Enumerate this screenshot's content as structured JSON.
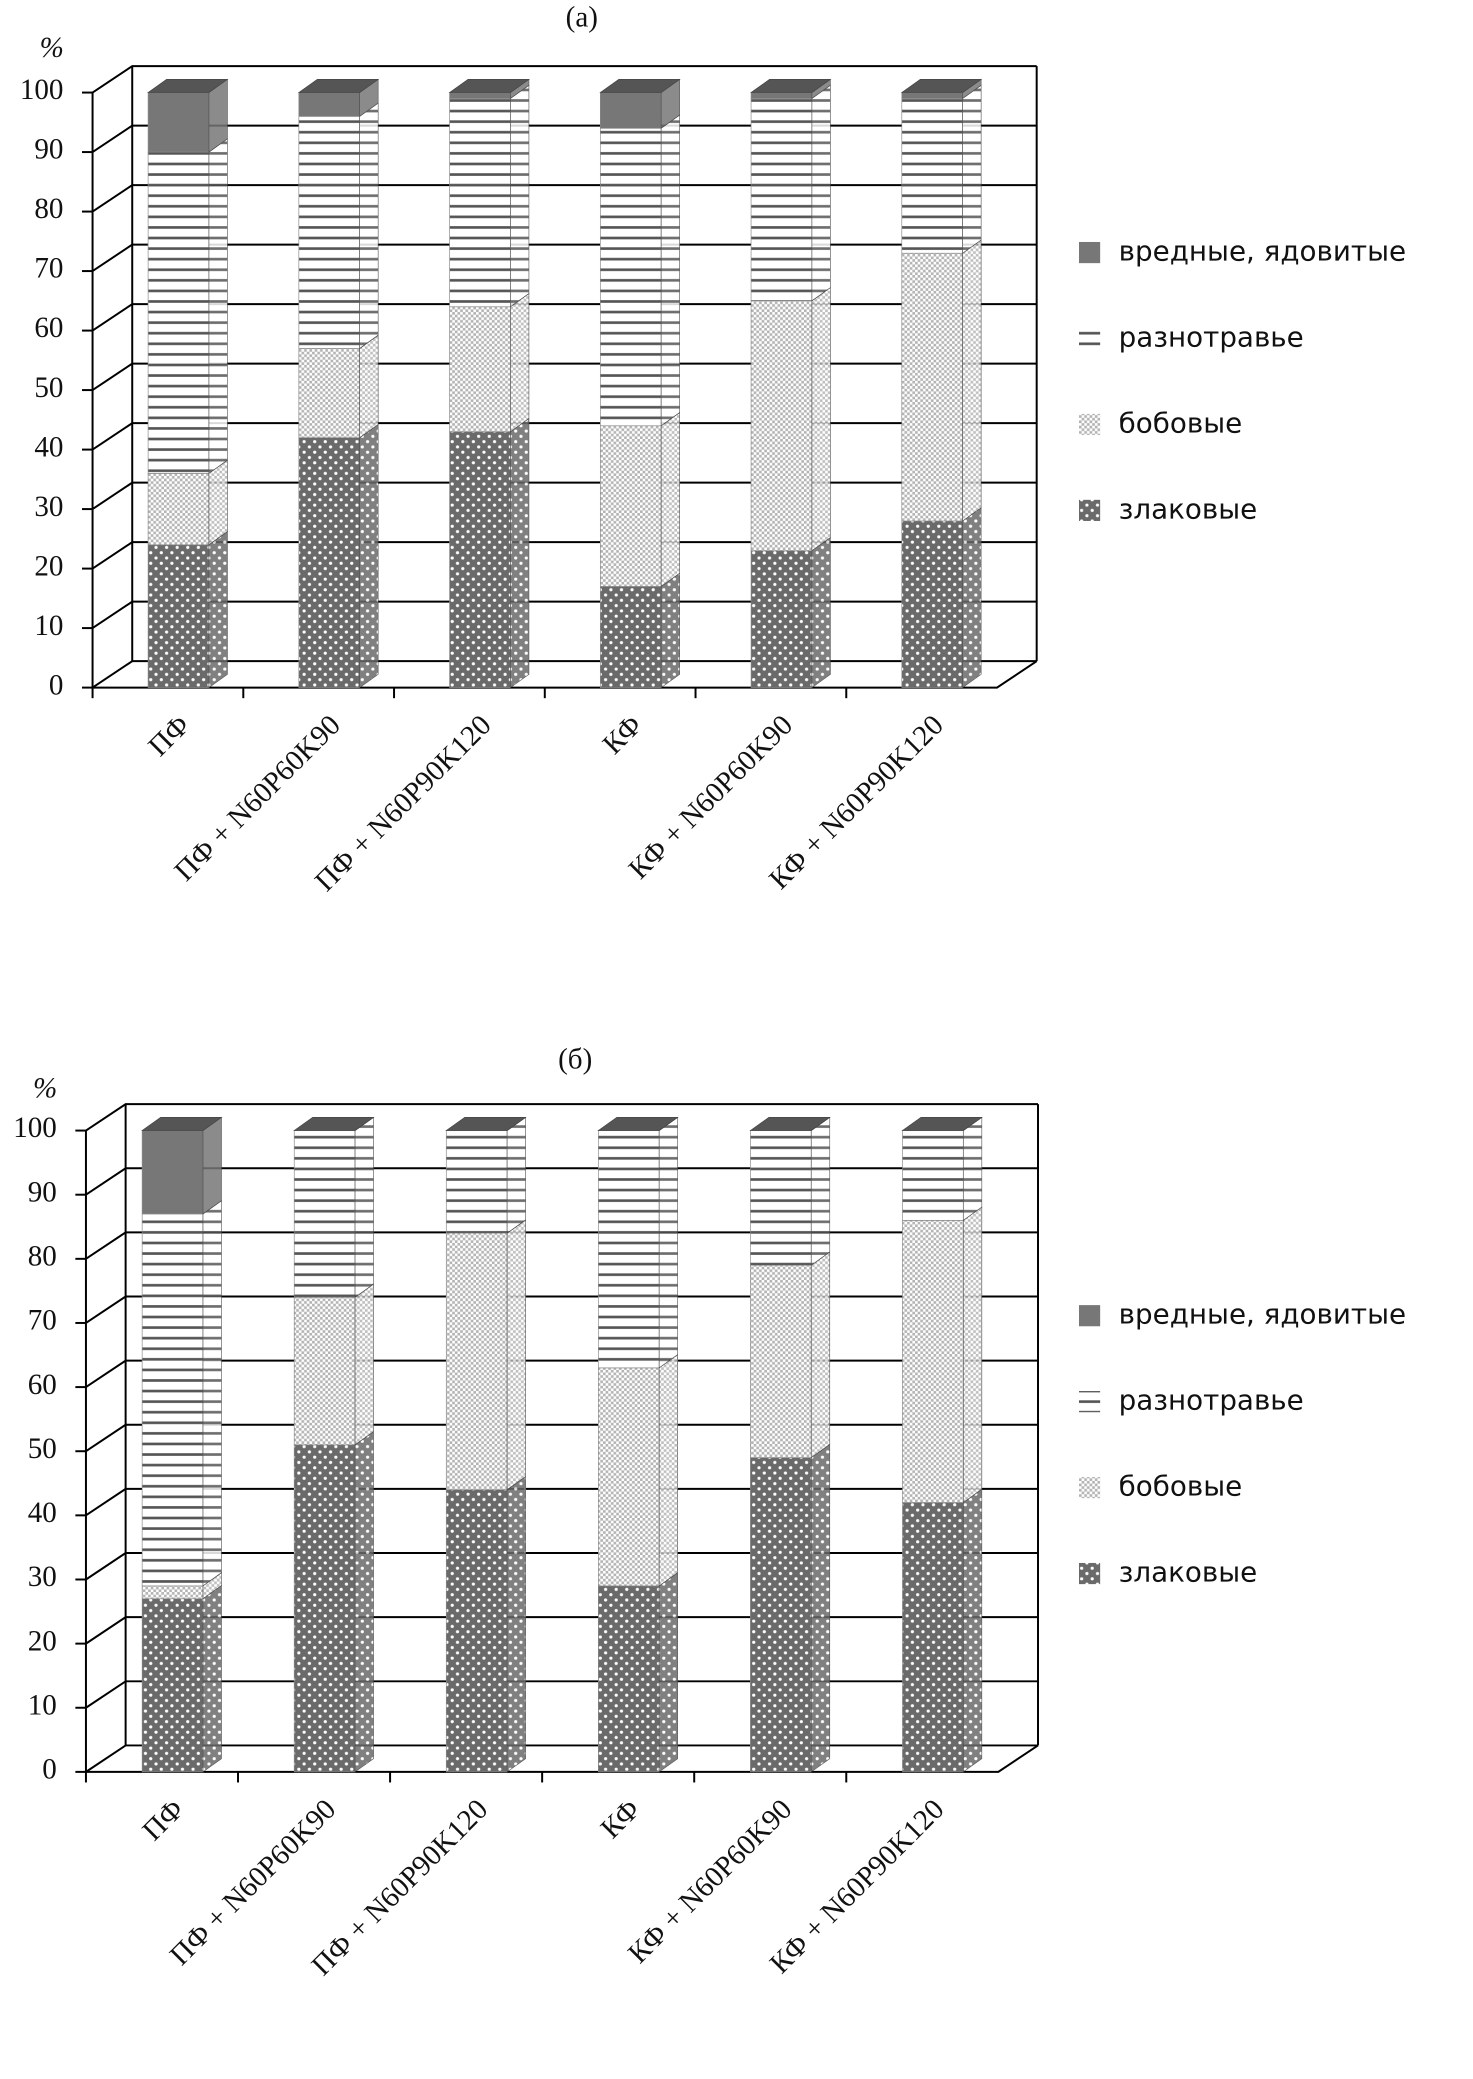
{
  "chart_data": [
    {
      "type": "bar",
      "stacked": true,
      "title": "(а)",
      "y_label": "%",
      "categories": [
        "ПФ",
        "ПФ + N60P60K90",
        "ПФ + N60P90K120",
        "КФ",
        "КФ + N60P60K90",
        "КФ + N60P90K120"
      ],
      "series": [
        {
          "name": "злаковые",
          "color": "#6a6a6a",
          "values": [
            24,
            42,
            43,
            17,
            23,
            28
          ]
        },
        {
          "name": "бобовые",
          "color": "#b4b4b4",
          "values": [
            12,
            15,
            21,
            27,
            42,
            45
          ]
        },
        {
          "name": "разнотравье",
          "color": "#ffffff",
          "values": [
            54,
            39,
            35,
            50,
            34,
            26
          ]
        },
        {
          "name": "вредные, ядовитые",
          "color": "#777777",
          "values": [
            10,
            4,
            1,
            6,
            1,
            1
          ]
        }
      ],
      "ylim": [
        0,
        100
      ],
      "yticks": [
        0,
        10,
        20,
        30,
        40,
        50,
        60,
        70,
        80,
        90,
        100
      ],
      "grid": true,
      "legend": "right"
    },
    {
      "type": "bar",
      "stacked": true,
      "title": "(б)",
      "y_label": "%",
      "categories": [
        "ПФ",
        "ПФ + N60P60K90",
        "ПФ + N60P90K120",
        "КФ",
        "КФ + N60P60K90",
        "КФ + N60P90K120"
      ],
      "series": [
        {
          "name": "злаковые",
          "color": "#6a6a6a",
          "values": [
            27,
            51,
            44,
            29,
            49,
            42
          ]
        },
        {
          "name": "бобовые",
          "color": "#b4b4b4",
          "values": [
            2,
            23,
            40,
            34,
            30,
            44
          ]
        },
        {
          "name": "разнотравье",
          "color": "#ffffff",
          "values": [
            58,
            26,
            16,
            37,
            21,
            14
          ]
        },
        {
          "name": "вредные, ядовитые",
          "color": "#777777",
          "values": [
            13,
            0,
            0,
            0,
            0,
            0
          ]
        }
      ],
      "ylim": [
        0,
        100
      ],
      "yticks": [
        0,
        10,
        20,
        30,
        40,
        50,
        60,
        70,
        80,
        90,
        100
      ],
      "grid": true,
      "legend": "right"
    }
  ]
}
